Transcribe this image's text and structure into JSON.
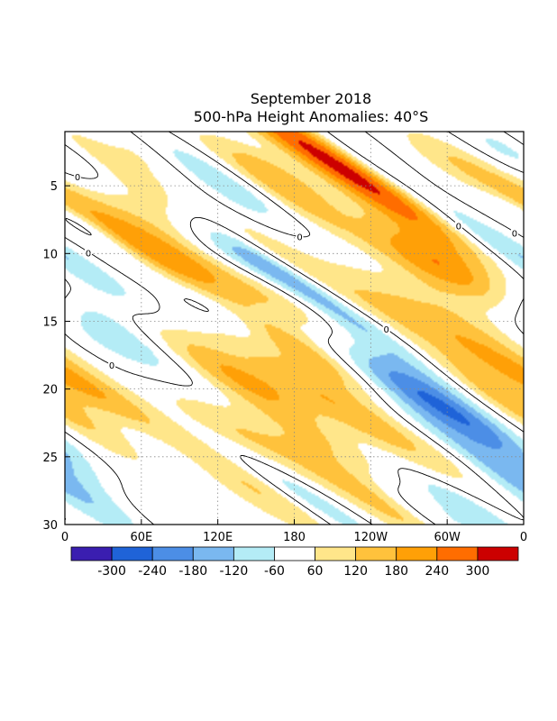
{
  "chart_data": {
    "type": "heatmap",
    "title": "September 2018",
    "subtitle": "500-hPa Height Anomalies: 40°S",
    "x_tick_labels": [
      "0",
      "60E",
      "120E",
      "180",
      "120W",
      "60W",
      "0"
    ],
    "y_tick_labels": [
      "5",
      "10",
      "15",
      "20",
      "25",
      "30"
    ],
    "xlim": [
      0,
      360
    ],
    "ylim": [
      30,
      1
    ],
    "grid": true,
    "colorbar_labels": [
      "-300",
      "-240",
      "-180",
      "-120",
      "-60",
      "60",
      "120",
      "180",
      "240",
      "300"
    ],
    "colors": [
      "#3a1eb0",
      "#1f63d8",
      "#4c8ee6",
      "#7ab8f0",
      "#b4ecf6",
      "#ffffff",
      "#ffe68a",
      "#ffc23c",
      "#ffa007",
      "#ff6d00",
      "#cc0000"
    ],
    "zero_contour_label": "0",
    "anomaly_bands_m": [
      {
        "lon": 10,
        "day": 3,
        "value": -120,
        "dlon": 12,
        "dday": 1.6
      },
      {
        "lon": 50,
        "day": 5,
        "value": 160,
        "dlon": 28,
        "dday": 2.5
      },
      {
        "lon": 80,
        "day": 3.5,
        "value": 120,
        "dlon": 15,
        "dday": 1.5
      },
      {
        "lon": 110,
        "day": 4.5,
        "value": -160,
        "dlon": 22,
        "dday": 1.6
      },
      {
        "lon": 165,
        "day": 4,
        "value": 120,
        "dlon": 14,
        "dday": 1.2
      },
      {
        "lon": 215,
        "day": 3.5,
        "value": 330,
        "dlon": 18,
        "dday": 3.2
      },
      {
        "lon": 210,
        "day": 8,
        "value": 150,
        "dlon": 14,
        "dday": 3
      },
      {
        "lon": 255,
        "day": 4,
        "value": -120,
        "dlon": 14,
        "dday": 2
      },
      {
        "lon": 285,
        "day": 5.5,
        "value": 60,
        "dlon": 18,
        "dday": 1.5
      },
      {
        "lon": 320,
        "day": 4,
        "value": 120,
        "dlon": 16,
        "dday": 1.6
      },
      {
        "lon": 350,
        "day": 3,
        "value": -120,
        "dlon": 14,
        "dday": 1.6
      },
      {
        "lon": 15,
        "day": 8,
        "value": -120,
        "dlon": 10,
        "dday": 1.5
      },
      {
        "lon": 75,
        "day": 10,
        "value": 180,
        "dlon": 28,
        "dday": 2.2
      },
      {
        "lon": 125,
        "day": 10,
        "value": -180,
        "dlon": 22,
        "dday": 1.4
      },
      {
        "lon": 165,
        "day": 10,
        "value": 120,
        "dlon": 14,
        "dday": 1.5
      },
      {
        "lon": 190,
        "day": 12.5,
        "value": -180,
        "dlon": 14,
        "dday": 3
      },
      {
        "lon": 240,
        "day": 10,
        "value": -120,
        "dlon": 14,
        "dday": 1.4
      },
      {
        "lon": 280,
        "day": 10,
        "value": 120,
        "dlon": 22,
        "dday": 1.8
      },
      {
        "lon": 310,
        "day": 11.5,
        "value": 180,
        "dlon": 24,
        "dday": 1.5
      },
      {
        "lon": 355,
        "day": 10,
        "value": -120,
        "dlon": 14,
        "dday": 2
      },
      {
        "lon": 30,
        "day": 15,
        "value": -180,
        "dlon": 28,
        "dday": 2.5
      },
      {
        "lon": 130,
        "day": 14,
        "value": -180,
        "dlon": 22,
        "dday": 1.4
      },
      {
        "lon": 175,
        "day": 14,
        "value": 160,
        "dlon": 18,
        "dday": 2.5
      },
      {
        "lon": 240,
        "day": 14,
        "value": 60,
        "dlon": 20,
        "dday": 1.5
      },
      {
        "lon": 325,
        "day": 17.5,
        "value": 200,
        "dlon": 26,
        "dday": 2.8
      },
      {
        "lon": 110,
        "day": 18,
        "value": 200,
        "dlon": 22,
        "dday": 2
      },
      {
        "lon": 200,
        "day": 18,
        "value": 260,
        "dlon": 16,
        "dday": 3.5
      },
      {
        "lon": 250,
        "day": 18.5,
        "value": -180,
        "dlon": 22,
        "dday": 2.2
      },
      {
        "lon": 300,
        "day": 17,
        "value": -60,
        "dlon": 16,
        "dday": 1.8
      },
      {
        "lon": 30,
        "day": 20.5,
        "value": 60,
        "dlon": 14,
        "dday": 1.5
      },
      {
        "lon": 160,
        "day": 20,
        "value": 60,
        "dlon": 14,
        "dday": 1.2
      },
      {
        "lon": 210,
        "day": 21,
        "value": 160,
        "dlon": 16,
        "dday": 2.5
      },
      {
        "lon": 260,
        "day": 21.5,
        "value": -180,
        "dlon": 16,
        "dday": 1.8
      },
      {
        "lon": 300,
        "day": 21.5,
        "value": -120,
        "dlon": 14,
        "dday": 1.6
      },
      {
        "lon": 345,
        "day": 21,
        "value": 120,
        "dlon": 14,
        "dday": 2
      },
      {
        "lon": 130,
        "day": 23,
        "value": 120,
        "dlon": 18,
        "dday": 1.8
      },
      {
        "lon": 70,
        "day": 24,
        "value": -60,
        "dlon": 14,
        "dday": 1.4
      },
      {
        "lon": 220,
        "day": 25,
        "value": 120,
        "dlon": 16,
        "dday": 2
      },
      {
        "lon": 300,
        "day": 25,
        "value": 60,
        "dlon": 16,
        "dday": 1.6
      },
      {
        "lon": 20,
        "day": 26.5,
        "value": -180,
        "dlon": 22,
        "dday": 2
      },
      {
        "lon": 55,
        "day": 28,
        "value": 180,
        "dlon": 22,
        "dday": 1.8
      },
      {
        "lon": 150,
        "day": 27.5,
        "value": 120,
        "dlon": 18,
        "dday": 2
      },
      {
        "lon": 190,
        "day": 28,
        "value": -120,
        "dlon": 12,
        "dday": 2
      },
      {
        "lon": 240,
        "day": 28,
        "value": 150,
        "dlon": 16,
        "dday": 2.5
      },
      {
        "lon": 275,
        "day": 28.5,
        "value": -120,
        "dlon": 16,
        "dday": 1.8
      },
      {
        "lon": 350,
        "day": 27,
        "value": -150,
        "dlon": 16,
        "dday": 2
      },
      {
        "lon": 90,
        "day": 29,
        "value": -60,
        "dlon": 14,
        "dday": 1.2
      },
      {
        "lon": 320,
        "day": 29,
        "value": -120,
        "dlon": 12,
        "dday": 1.4
      }
    ]
  }
}
